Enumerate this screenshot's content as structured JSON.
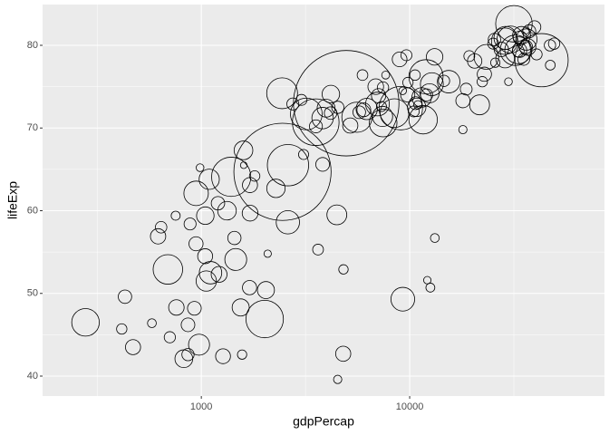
{
  "chart_data": {
    "type": "scatter",
    "x_label": "gdpPercap",
    "y_label": "lifeExp",
    "x": [
      975,
      5937,
      6223,
      4797,
      12779,
      34435,
      36126,
      29796,
      1391,
      33693,
      1441,
      3822,
      7446,
      12570,
      9066,
      10681,
      1217,
      430,
      1714,
      2042,
      36319,
      706,
      1704,
      13172,
      4959,
      7007,
      986,
      278,
      3633,
      9645,
      1545,
      14619,
      8948,
      22833,
      35278,
      2082,
      6025,
      6873,
      5581,
      5728,
      12154,
      641,
      691,
      33207,
      30470,
      13206,
      753,
      32170,
      1328,
      27538,
      5186,
      943,
      579,
      1202,
      3548,
      39725,
      18009,
      36181,
      2452,
      3541,
      11606,
      4471,
      40676,
      25523,
      28570,
      7321,
      31656,
      4519,
      1463,
      1593,
      23348,
      47307,
      10461,
      1569,
      415,
      12057,
      1045,
      759,
      12452,
      1043,
      1803,
      10957,
      11978,
      3096,
      9254,
      3820,
      824,
      944,
      4811,
      1091,
      36798,
      25185,
      2749,
      620,
      2014,
      49357,
      22316,
      2606,
      9809,
      4173,
      7409,
      3190,
      15390,
      20510,
      19329,
      7670,
      10808,
      863,
      1598,
      21655,
      1712,
      9787,
      863,
      47143,
      18678,
      25768,
      926,
      9270,
      28821,
      3970,
      2602,
      4513,
      33860,
      37506,
      4185,
      28718,
      1107,
      7458,
      883,
      18009,
      7093,
      8458,
      1056,
      33203,
      42952,
      10611,
      11416,
      2442,
      3025,
      2281,
      1271,
      470
    ],
    "values": [
      43.8,
      76.4,
      72.3,
      42.7,
      75.3,
      81.2,
      79.8,
      75.6,
      64.1,
      79.4,
      56.7,
      65.6,
      74.9,
      50.7,
      72.4,
      73.0,
      52.3,
      49.6,
      59.7,
      50.4,
      80.7,
      44.7,
      50.7,
      78.6,
      73.0,
      72.9,
      65.2,
      46.5,
      55.3,
      78.8,
      48.3,
      75.7,
      78.3,
      76.5,
      78.3,
      54.8,
      72.2,
      75.0,
      71.3,
      71.9,
      51.6,
      58.0,
      52.9,
      79.3,
      80.7,
      56.7,
      59.4,
      79.4,
      60.0,
      79.5,
      70.3,
      56.0,
      46.4,
      60.9,
      70.2,
      82.2,
      73.3,
      81.8,
      64.7,
      70.7,
      71.0,
      59.5,
      78.9,
      80.7,
      80.5,
      72.6,
      82.6,
      72.5,
      54.1,
      67.3,
      78.6,
      77.6,
      72.0,
      42.6,
      45.7,
      74.0,
      59.4,
      48.3,
      74.2,
      54.5,
      64.2,
      72.8,
      76.2,
      66.8,
      74.5,
      71.2,
      42.1,
      62.1,
      52.9,
      63.8,
      79.8,
      80.2,
      72.9,
      56.9,
      46.9,
      80.2,
      75.6,
      65.5,
      75.5,
      71.8,
      71.4,
      71.7,
      75.6,
      78.1,
      78.7,
      76.4,
      72.5,
      46.2,
      65.5,
      72.8,
      63.1,
      74.0,
      42.6,
      80.0,
      74.7,
      77.9,
      48.2,
      49.3,
      80.9,
      72.4,
      58.6,
      39.6,
      80.9,
      81.7,
      74.1,
      78.4,
      52.5,
      70.6,
      58.4,
      69.8,
      73.9,
      71.8,
      51.5,
      79.4,
      78.2,
      76.4,
      73.7,
      74.2,
      73.4,
      62.7,
      42.4,
      43.5
    ],
    "sizes": [
      31.9,
      3.6,
      33.3,
      12.4,
      40.3,
      20.4,
      8.2,
      0.7,
      150.4,
      10.4,
      8.1,
      9.1,
      4.6,
      1.6,
      190,
      7.3,
      14.3,
      8.4,
      14.1,
      17.7,
      33.4,
      4.4,
      10.2,
      16.3,
      1318.7,
      44.2,
      0.7,
      64.6,
      3.8,
      4.1,
      18.0,
      4.5,
      11.4,
      10.2,
      5.5,
      0.5,
      9.3,
      13.8,
      80.3,
      6.9,
      0.55,
      4.9,
      76.5,
      5.2,
      61.1,
      1.5,
      1.7,
      82.4,
      22.9,
      10.7,
      12.6,
      9.9,
      1.5,
      8.5,
      7.5,
      6.98,
      9.96,
      0.3,
      1110,
      223.5,
      69.5,
      27.5,
      4.1,
      6.4,
      58.1,
      2.8,
      127.5,
      6.1,
      35.6,
      23.3,
      49.0,
      2.5,
      4.0,
      2.0,
      3.2,
      6.0,
      19.2,
      13.3,
      24.8,
      12.0,
      3.3,
      1.25,
      108.7,
      2.9,
      0.68,
      33.8,
      20.0,
      47.8,
      2.1,
      28.9,
      16.6,
      4.1,
      5.7,
      12.9,
      135,
      4.6,
      3.2,
      169.3,
      3.2,
      6.7,
      28.7,
      91.1,
      38.5,
      10.6,
      3.9,
      0.8,
      22.3,
      8.9,
      0.2,
      27.6,
      12.3,
      10.2,
      6.1,
      4.6,
      5.4,
      2.0,
      9.1,
      44.0,
      40.4,
      20.4,
      42.3,
      1.1,
      9.0,
      7.55,
      19.3,
      23.2,
      38.1,
      65.1,
      5.7,
      1.06,
      10.3,
      71.2,
      29.2,
      60.8,
      301,
      3.4,
      26.1,
      85.3,
      4.0,
      22.2,
      11.7,
      12.3
    ],
    "xlim": [
      173,
      86100
    ],
    "ylim": [
      37.59,
      84.93
    ],
    "x_log": true,
    "xticks": [
      1000,
      10000
    ],
    "yticks": [
      40,
      50,
      60,
      70,
      80
    ],
    "grid": true,
    "panel_color": "#ebebeb",
    "color": "#000000"
  }
}
